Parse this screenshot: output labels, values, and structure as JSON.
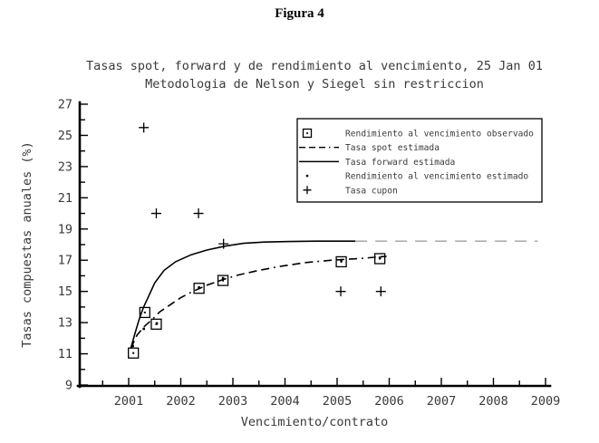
{
  "figure": {
    "title": "Figura 4"
  },
  "chart_data": {
    "type": "line",
    "title_lines": [
      "Tasas spot, forward y de rendimiento al vencimiento, 25 Jan 01",
      "Metodologia de Nelson y Siegel sin restriccion"
    ],
    "xlabel": "Vencimiento/contrato",
    "ylabel": "Tasas compuestas anuales (%)",
    "xlim": [
      2000.06,
      2009.1
    ],
    "ylim": [
      9,
      27
    ],
    "grid": false,
    "x_axis": {
      "major_ticks": [
        2001,
        2002,
        2003,
        2004,
        2005,
        2006,
        2007,
        2008,
        2009
      ],
      "minor_ticks": [
        2000.5,
        2001.5,
        2002.5,
        2003.5,
        2004.5,
        2005.5,
        2006.5,
        2007.5,
        2008.5
      ]
    },
    "y_axis": {
      "tick_step": 1,
      "labeled_ticks": [
        9,
        11,
        13,
        15,
        17,
        19,
        21,
        23,
        25,
        27
      ]
    },
    "series": [
      {
        "name": "Tasa forward estimada",
        "type": "line",
        "style": "solid",
        "points": [
          [
            2001.04,
            11.35
          ],
          [
            2001.12,
            12.3
          ],
          [
            2001.2,
            13.2
          ],
          [
            2001.28,
            13.95
          ],
          [
            2001.37,
            14.6
          ],
          [
            2001.5,
            15.55
          ],
          [
            2001.68,
            16.35
          ],
          [
            2001.9,
            16.9
          ],
          [
            2002.2,
            17.35
          ],
          [
            2002.5,
            17.65
          ],
          [
            2002.85,
            17.9
          ],
          [
            2003.2,
            18.08
          ],
          [
            2003.6,
            18.16
          ],
          [
            2004.1,
            18.2
          ],
          [
            2004.6,
            18.22
          ],
          [
            2005.35,
            18.22
          ]
        ]
      },
      {
        "name": "Tasa forward estimada extrapolacion",
        "type": "line",
        "style": "long-dash-gray",
        "points": [
          [
            2005.35,
            18.22
          ],
          [
            2008.85,
            18.22
          ]
        ]
      },
      {
        "name": "Tasa spot estimada",
        "type": "line",
        "style": "dash-dot",
        "points": [
          [
            2001.04,
            11.35
          ],
          [
            2001.16,
            12.2
          ],
          [
            2001.3,
            12.75
          ],
          [
            2001.45,
            13.2
          ],
          [
            2001.6,
            13.7
          ],
          [
            2001.8,
            14.15
          ],
          [
            2002.0,
            14.6
          ],
          [
            2002.2,
            14.95
          ],
          [
            2002.5,
            15.4
          ],
          [
            2002.8,
            15.75
          ],
          [
            2003.1,
            16.05
          ],
          [
            2003.5,
            16.35
          ],
          [
            2003.9,
            16.6
          ],
          [
            2004.4,
            16.85
          ],
          [
            2004.9,
            17.0
          ],
          [
            2005.4,
            17.1
          ],
          [
            2005.95,
            17.25
          ]
        ]
      },
      {
        "name": "Rendimiento al vencimiento estimado",
        "type": "scatter",
        "marker": "dot",
        "points": [
          [
            2001.08,
            11.5
          ],
          [
            2001.29,
            12.6
          ],
          [
            2001.54,
            12.95
          ],
          [
            2002.35,
            15.25
          ],
          [
            2002.81,
            15.85
          ],
          [
            2005.08,
            17.0
          ],
          [
            2005.82,
            17.15
          ]
        ]
      },
      {
        "name": "Rendimiento al vencimiento observado",
        "type": "scatter",
        "marker": "square-dot",
        "points": [
          [
            2001.09,
            11.05
          ],
          [
            2001.31,
            13.65
          ],
          [
            2001.53,
            12.9
          ],
          [
            2002.35,
            15.2
          ],
          [
            2002.81,
            15.7
          ],
          [
            2005.08,
            16.9
          ],
          [
            2005.82,
            17.1
          ]
        ]
      },
      {
        "name": "Tasa cupon",
        "type": "scatter",
        "marker": "plus",
        "points": [
          [
            2001.29,
            25.5
          ],
          [
            2001.53,
            20.0
          ],
          [
            2002.34,
            20.0
          ],
          [
            2002.82,
            18.05
          ],
          [
            2005.07,
            15.0
          ],
          [
            2005.84,
            15.0
          ]
        ]
      }
    ],
    "legend": {
      "position": "upper-right",
      "entries": [
        {
          "marker": "square-dot",
          "label": "Rendimiento al vencimiento observado"
        },
        {
          "marker": "dash-dot-line",
          "label": "Tasa spot estimada"
        },
        {
          "marker": "solid-line",
          "label": "Tasa forward estimada"
        },
        {
          "marker": "dot",
          "label": "Rendimiento al vencimiento estimado"
        },
        {
          "marker": "plus",
          "label": "Tasa cupon"
        }
      ]
    }
  }
}
